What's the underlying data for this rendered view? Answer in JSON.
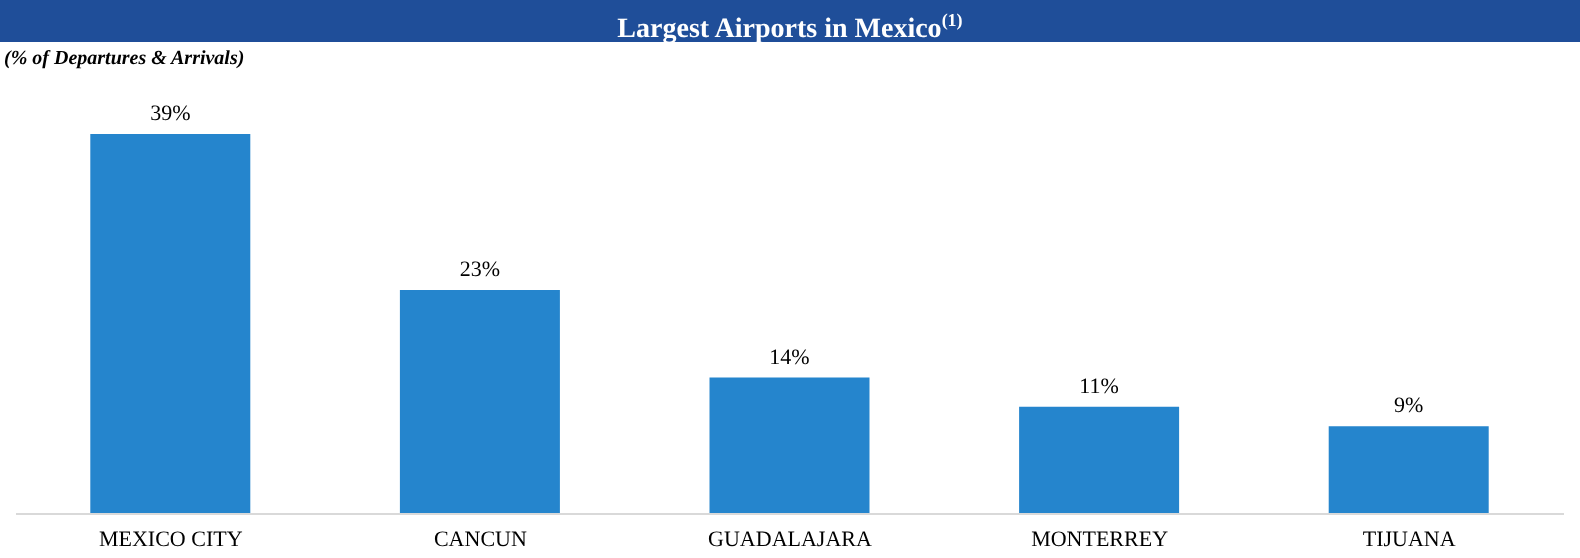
{
  "chart_data": {
    "type": "bar",
    "title": "Largest Airports in Mexico$^{(1)}$",
    "subtitle": "(% of Departures & Arrivals)",
    "categories": [
      "MEXICO CITY",
      "CANCUN",
      "GUADALAJARA",
      "MONTERREY",
      "TIJUANA"
    ],
    "values": [
      39,
      23,
      14,
      11,
      9
    ],
    "color": "#2585cd",
    "value_labels": [
      "39%",
      "23%",
      "14%",
      "11%",
      "9%"
    ]
  }
}
